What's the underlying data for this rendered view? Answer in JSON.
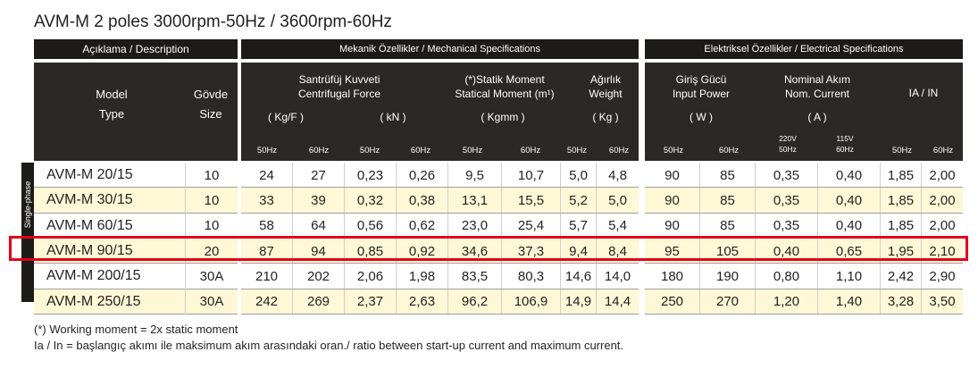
{
  "title": "AVM-M 2 poles 3000rpm-50Hz  / 3600rpm-60Hz",
  "headers": {
    "description": "Açıklama / Description",
    "mechanical": "Mekanik Özellikler / Mechanical Specifications",
    "electrical": "Elektriksel Özellikler / Electrical Specifications",
    "model": "Model",
    "type": "Type",
    "body_tr": "Gövde",
    "body_en": "Size",
    "cf_tr": "Santrüfüj  Kuvveti",
    "cf_en": "Centrifugal Force",
    "cf_unit1": "( Kg/F )",
    "cf_unit2": "( kN )",
    "sm_tr": "(*)Statik Moment",
    "sm_en": "Statical Moment (m¹)",
    "sm_unit": "( Kgmm )",
    "w_tr": "Ağırlık",
    "w_en": "Weight",
    "w_unit": "( Kg )",
    "ip_tr": "Giriş Gücü",
    "ip_en": "Input Power",
    "ip_unit": "( W )",
    "nc_tr": "Nominal Akım",
    "nc_en": "Nom. Current",
    "nc_unit": "( A )",
    "ratio": "IA / IN",
    "hz50": "50Hz",
    "hz60": "60Hz",
    "v220_top": "220V",
    "v220_bot": "50Hz",
    "v115_top": "115V",
    "v115_bot": "60Hz",
    "single_phase": "Single-phase"
  },
  "rows": [
    [
      "AVM-M 20/15",
      "10",
      "24",
      "27",
      "0,23",
      "0,26",
      "9,5",
      "10,7",
      "5,0",
      "4,8",
      "90",
      "85",
      "0,35",
      "0,40",
      "1,85",
      "2,00"
    ],
    [
      "AVM-M 30/15",
      "10",
      "33",
      "39",
      "0,32",
      "0,38",
      "13,1",
      "15,5",
      "5,2",
      "5,0",
      "90",
      "85",
      "0,35",
      "0,40",
      "1,85",
      "2,00"
    ],
    [
      "AVM-M 60/15",
      "10",
      "58",
      "64",
      "0,56",
      "0,62",
      "23,0",
      "25,4",
      "5,7",
      "5,4",
      "90",
      "85",
      "0,35",
      "0,40",
      "1,85",
      "2,00"
    ],
    [
      "AVM-M 90/15",
      "20",
      "87",
      "94",
      "0,85",
      "0,92",
      "34,6",
      "37,3",
      "9,4",
      "8,4",
      "95",
      "105",
      "0,40",
      "0,65",
      "1,95",
      "2,10"
    ],
    [
      "AVM-M 200/15",
      "30A",
      "210",
      "202",
      "2,06",
      "1,98",
      "83,5",
      "80,3",
      "14,6",
      "14,0",
      "180",
      "190",
      "0,80",
      "1,10",
      "2,42",
      "2,90"
    ],
    [
      "AVM-M 250/15",
      "30A",
      "242",
      "269",
      "2,37",
      "2,63",
      "96,2",
      "106,9",
      "14,9",
      "14,4",
      "250",
      "270",
      "1,20",
      "1,40",
      "3,28",
      "3,50"
    ]
  ],
  "notes": {
    "line1": "(*) Working moment = 2x static moment",
    "line2": "Ia / In = başlangıç akımı ile maksimum akım arasındaki oran./ ratio between start-up current and maximum current."
  },
  "colors": {
    "header": "#1d1b19",
    "shade": "#fff8d6",
    "highlight": "#e3001b"
  }
}
